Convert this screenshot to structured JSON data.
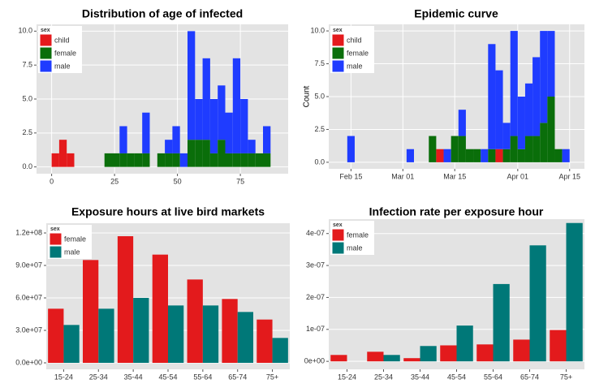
{
  "chart_data": [
    {
      "type": "histogram",
      "title": "Distribution of age of infected",
      "bins": [
        0,
        3,
        6,
        9,
        12,
        15,
        18,
        21,
        24,
        27,
        30,
        33,
        36,
        39,
        42,
        45,
        48,
        51,
        54,
        57,
        60,
        63,
        66,
        69,
        72,
        75,
        78,
        81,
        84,
        87,
        90
      ],
      "series": [
        {
          "name": "child",
          "color": "#e41a1c",
          "values": [
            1,
            2,
            1,
            0,
            0,
            0,
            0,
            0,
            0,
            0,
            0,
            0,
            0,
            0,
            0,
            0,
            0,
            0,
            0,
            0,
            0,
            0,
            0,
            0,
            0,
            0,
            0,
            0,
            0,
            0
          ]
        },
        {
          "name": "female",
          "color": "#0a6e0a",
          "values": [
            0,
            0,
            0,
            0,
            0,
            0,
            0,
            1,
            1,
            1,
            1,
            1,
            1,
            0,
            1,
            1,
            1,
            0,
            2,
            2,
            2,
            1,
            2,
            1,
            1,
            1,
            1,
            1,
            1,
            0
          ]
        },
        {
          "name": "male",
          "color": "#1f3cff",
          "values": [
            0,
            0,
            0,
            0,
            0,
            0,
            0,
            0,
            0,
            2,
            0,
            0,
            3,
            0,
            0,
            1,
            2,
            1,
            8,
            3,
            6,
            4,
            4,
            3,
            7,
            4,
            1,
            0,
            2,
            0
          ]
        }
      ],
      "xlim": [
        -6,
        94
      ],
      "xticks": [
        0,
        25,
        50,
        75
      ],
      "ylim": [
        -0.5,
        10.5
      ],
      "yticks": [
        {
          "value": 0,
          "label": "0.0"
        },
        2.5,
        {
          "value": 5,
          "label": "5.0"
        },
        7.5,
        {
          "value": 10,
          "label": "10.0"
        }
      ],
      "grid": true,
      "legend_title": "sex",
      "legend": "top-left"
    },
    {
      "type": "histogram",
      "title": "Epidemic curve",
      "y_label": "Count",
      "bins": [
        45,
        47,
        49,
        51,
        53,
        55,
        57,
        59,
        61,
        63,
        65,
        67,
        69,
        71,
        73,
        75,
        77,
        79,
        81,
        83,
        85,
        87,
        89,
        91,
        93,
        95,
        97,
        99,
        101,
        103,
        105
      ],
      "series": [
        {
          "name": "child",
          "color": "#e41a1c",
          "values": [
            0,
            0,
            0,
            0,
            0,
            0,
            0,
            0,
            0,
            0,
            0,
            0,
            1,
            0,
            0,
            0,
            0,
            0,
            0,
            0,
            1,
            0,
            0,
            0,
            0,
            0,
            0,
            0,
            0,
            0
          ]
        },
        {
          "name": "female",
          "color": "#0a6e0a",
          "values": [
            0,
            0,
            0,
            0,
            0,
            0,
            0,
            0,
            0,
            0,
            0,
            2,
            0,
            0,
            2,
            2,
            1,
            1,
            0,
            1,
            0,
            1,
            2,
            1,
            2,
            2,
            3,
            5,
            1,
            0
          ]
        },
        {
          "name": "male",
          "color": "#1f3cff",
          "values": [
            2,
            0,
            0,
            0,
            0,
            0,
            0,
            0,
            1,
            0,
            0,
            0,
            0,
            1,
            0,
            2,
            0,
            0,
            1,
            8,
            6,
            2,
            8,
            4,
            4,
            6,
            7,
            5,
            0,
            1
          ]
        }
      ],
      "xlim": [
        40,
        109
      ],
      "xticks": [
        {
          "value": 46,
          "label": "Feb 15"
        },
        {
          "value": 60,
          "label": "Mar 01"
        },
        {
          "value": 74,
          "label": "Mar 15"
        },
        {
          "value": 91,
          "label": "Apr 01"
        },
        {
          "value": 105,
          "label": "Apr 15"
        }
      ],
      "ylim": [
        -0.5,
        10.5
      ],
      "yticks": [
        {
          "value": 0,
          "label": "0.0"
        },
        2.5,
        {
          "value": 5,
          "label": "5.0"
        },
        7.5,
        {
          "value": 10,
          "label": "10.0"
        }
      ],
      "grid": true,
      "legend_title": "sex",
      "legend": "top-left"
    },
    {
      "type": "bar",
      "title": "Exposure hours at live bird markets",
      "categories": [
        "15-24",
        "25-34",
        "35-44",
        "45-54",
        "55-64",
        "65-74",
        "75+"
      ],
      "series": [
        {
          "name": "female",
          "color": "#e31a1c",
          "values": [
            50000000,
            95000000,
            117000000,
            100000000,
            77000000,
            59000000,
            40000000
          ]
        },
        {
          "name": "male",
          "color": "#007878",
          "values": [
            35000000,
            50000000,
            60000000,
            53000000,
            53000000,
            47000000,
            23000000
          ]
        }
      ],
      "ylim": [
        -6000000,
        129000000
      ],
      "yticks": [
        {
          "value": 0,
          "label": "0.0e+00"
        },
        {
          "value": 30000000,
          "label": "3.0e+07"
        },
        {
          "value": 60000000,
          "label": "6.0e+07"
        },
        {
          "value": 90000000,
          "label": "9.0e+07"
        },
        {
          "value": 120000000,
          "label": "1.2e+08"
        }
      ],
      "grid": true,
      "legend_title": "sex",
      "legend": "top-left"
    },
    {
      "type": "bar",
      "title": "Infection rate per exposure hour",
      "categories": [
        "15-24",
        "25-34",
        "35-44",
        "45-54",
        "55-64",
        "65-74",
        "75+"
      ],
      "series": [
        {
          "name": "female",
          "color": "#e31a1c",
          "values": [
            2e-08,
            3e-08,
            1e-08,
            5e-08,
            5.3e-08,
            6.8e-08,
            9.8e-08
          ]
        },
        {
          "name": "male",
          "color": "#007878",
          "values": [
            null,
            2e-08,
            4.8e-08,
            1.12e-07,
            2.42e-07,
            3.63e-07,
            4.33e-07
          ]
        }
      ],
      "ylim": [
        -2.5e-08,
        4.45e-07
      ],
      "yticks": [
        {
          "value": 0,
          "label": "0e+00"
        },
        {
          "value": 1e-07,
          "label": "1e-07"
        },
        {
          "value": 2e-07,
          "label": "2e-07"
        },
        {
          "value": 3e-07,
          "label": "3e-07"
        },
        {
          "value": 4e-07,
          "label": "4e-07"
        }
      ],
      "grid": true,
      "legend_title": "sex",
      "legend": "top-left"
    }
  ]
}
